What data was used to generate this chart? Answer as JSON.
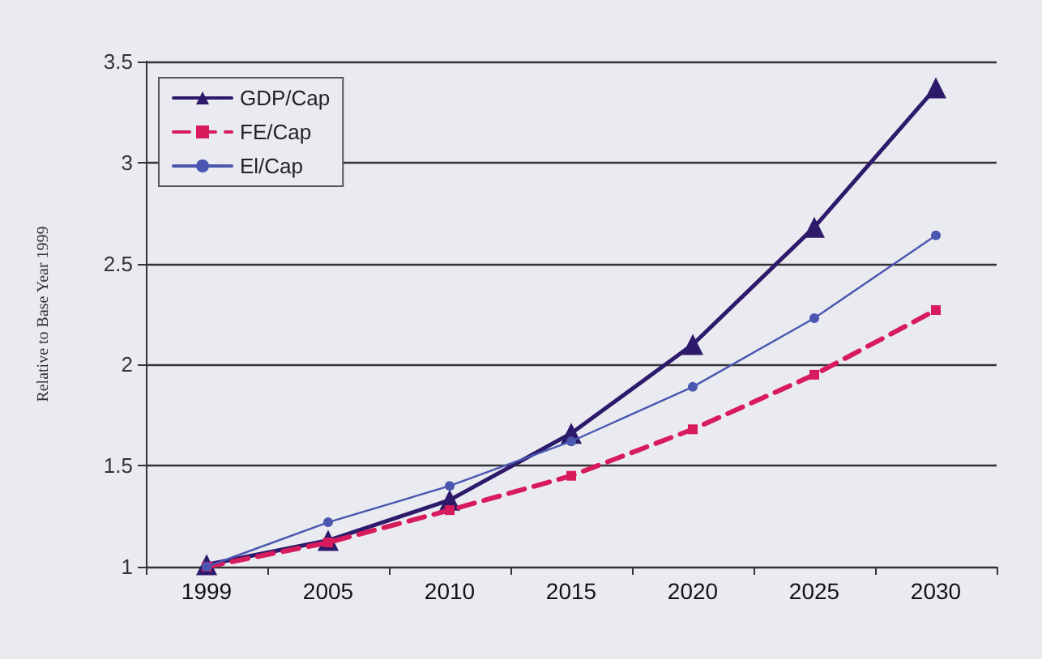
{
  "chart_data": {
    "type": "line",
    "ylabel": "Relative to Base Year 1999",
    "categories": [
      "1999",
      "2005",
      "2010",
      "2015",
      "2020",
      "2025",
      "2030"
    ],
    "series": [
      {
        "name": "GDP/Cap",
        "color": "#2e1a6b",
        "marker": "triangle",
        "line_style": "solid",
        "values": [
          1.01,
          1.13,
          1.33,
          1.66,
          2.1,
          2.68,
          3.37
        ]
      },
      {
        "name": "FE/Cap",
        "color": "#d81b5c",
        "marker": "square",
        "line_style": "dashed",
        "values": [
          1.0,
          1.12,
          1.28,
          1.45,
          1.68,
          1.95,
          2.27
        ]
      },
      {
        "name": "El/Cap",
        "color": "#4a56b0",
        "marker": "circle",
        "line_style": "solid",
        "values": [
          1.0,
          1.22,
          1.4,
          1.62,
          1.89,
          2.23,
          2.64
        ]
      }
    ],
    "ylim": [
      1,
      3.5
    ],
    "yticks": [
      1,
      1.5,
      2,
      2.5,
      3,
      3.5
    ],
    "grid": "y",
    "legend": "top left"
  }
}
